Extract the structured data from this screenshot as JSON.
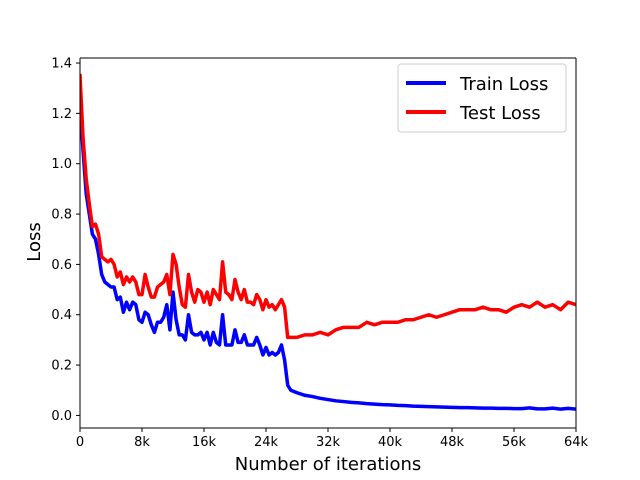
{
  "chart_data": {
    "type": "line",
    "xlabel": "Number of iterations",
    "ylabel": "Loss",
    "xlim": [
      0,
      64000
    ],
    "ylim": [
      -0.05,
      1.42
    ],
    "x_ticks": [
      0,
      8000,
      16000,
      24000,
      32000,
      40000,
      48000,
      56000,
      64000
    ],
    "x_tick_labels": [
      "0",
      "8k",
      "16k",
      "24k",
      "32k",
      "40k",
      "48k",
      "56k",
      "64k"
    ],
    "y_ticks": [
      0.0,
      0.2,
      0.4,
      0.6,
      0.8,
      1.0,
      1.2,
      1.4
    ],
    "y_tick_labels": [
      "0.0",
      "0.2",
      "0.4",
      "0.6",
      "0.8",
      "1.0",
      "1.2",
      "1.4"
    ],
    "grid": false,
    "legend_position": "top-right",
    "series": [
      {
        "name": "Train Loss",
        "color": "#0000ff",
        "points": [
          [
            0,
            1.24
          ],
          [
            400,
            1.05
          ],
          [
            800,
            0.88
          ],
          [
            1200,
            0.8
          ],
          [
            1600,
            0.72
          ],
          [
            2000,
            0.7
          ],
          [
            2400,
            0.64
          ],
          [
            2800,
            0.56
          ],
          [
            3200,
            0.53
          ],
          [
            3600,
            0.52
          ],
          [
            4000,
            0.51
          ],
          [
            4400,
            0.51
          ],
          [
            4800,
            0.46
          ],
          [
            5200,
            0.47
          ],
          [
            5600,
            0.41
          ],
          [
            6000,
            0.45
          ],
          [
            6400,
            0.42
          ],
          [
            6800,
            0.45
          ],
          [
            7200,
            0.44
          ],
          [
            7600,
            0.38
          ],
          [
            8000,
            0.37
          ],
          [
            8400,
            0.41
          ],
          [
            8800,
            0.4
          ],
          [
            9200,
            0.36
          ],
          [
            9600,
            0.33
          ],
          [
            10000,
            0.37
          ],
          [
            10400,
            0.37
          ],
          [
            10800,
            0.39
          ],
          [
            11200,
            0.44
          ],
          [
            11600,
            0.34
          ],
          [
            12000,
            0.49
          ],
          [
            12400,
            0.38
          ],
          [
            12800,
            0.32
          ],
          [
            13200,
            0.32
          ],
          [
            13600,
            0.3
          ],
          [
            14000,
            0.4
          ],
          [
            14400,
            0.33
          ],
          [
            14800,
            0.32
          ],
          [
            15200,
            0.32
          ],
          [
            15600,
            0.33
          ],
          [
            16000,
            0.3
          ],
          [
            16400,
            0.33
          ],
          [
            16800,
            0.28
          ],
          [
            17200,
            0.33
          ],
          [
            17600,
            0.29
          ],
          [
            18000,
            0.28
          ],
          [
            18400,
            0.4
          ],
          [
            18800,
            0.28
          ],
          [
            19200,
            0.28
          ],
          [
            19600,
            0.28
          ],
          [
            20000,
            0.34
          ],
          [
            20400,
            0.29
          ],
          [
            20800,
            0.29
          ],
          [
            21200,
            0.32
          ],
          [
            21600,
            0.28
          ],
          [
            22000,
            0.28
          ],
          [
            22400,
            0.28
          ],
          [
            22800,
            0.31
          ],
          [
            23200,
            0.28
          ],
          [
            23600,
            0.24
          ],
          [
            24000,
            0.27
          ],
          [
            24400,
            0.24
          ],
          [
            24800,
            0.25
          ],
          [
            25200,
            0.24
          ],
          [
            25600,
            0.25
          ],
          [
            26000,
            0.28
          ],
          [
            26400,
            0.22
          ],
          [
            26800,
            0.12
          ],
          [
            27200,
            0.1
          ],
          [
            28000,
            0.09
          ],
          [
            29000,
            0.08
          ],
          [
            30000,
            0.075
          ],
          [
            31000,
            0.068
          ],
          [
            32000,
            0.063
          ],
          [
            33000,
            0.058
          ],
          [
            34000,
            0.055
          ],
          [
            35000,
            0.052
          ],
          [
            36000,
            0.05
          ],
          [
            37000,
            0.047
          ],
          [
            38000,
            0.045
          ],
          [
            39000,
            0.043
          ],
          [
            40000,
            0.042
          ],
          [
            41000,
            0.04
          ],
          [
            42000,
            0.039
          ],
          [
            43000,
            0.037
          ],
          [
            44000,
            0.036
          ],
          [
            45000,
            0.035
          ],
          [
            46000,
            0.034
          ],
          [
            47000,
            0.033
          ],
          [
            48000,
            0.032
          ],
          [
            49000,
            0.031
          ],
          [
            50000,
            0.031
          ],
          [
            51000,
            0.03
          ],
          [
            52000,
            0.029
          ],
          [
            53000,
            0.029
          ],
          [
            54000,
            0.028
          ],
          [
            55000,
            0.028
          ],
          [
            56000,
            0.027
          ],
          [
            57000,
            0.027
          ],
          [
            58000,
            0.03
          ],
          [
            59000,
            0.026
          ],
          [
            60000,
            0.026
          ],
          [
            61000,
            0.029
          ],
          [
            62000,
            0.025
          ],
          [
            63000,
            0.028
          ],
          [
            64000,
            0.025
          ]
        ]
      },
      {
        "name": "Test Loss",
        "color": "#ff0000",
        "points": [
          [
            0,
            1.35
          ],
          [
            400,
            1.1
          ],
          [
            800,
            0.94
          ],
          [
            1200,
            0.84
          ],
          [
            1600,
            0.75
          ],
          [
            2000,
            0.76
          ],
          [
            2400,
            0.72
          ],
          [
            2800,
            0.63
          ],
          [
            3200,
            0.62
          ],
          [
            3600,
            0.61
          ],
          [
            4000,
            0.62
          ],
          [
            4400,
            0.6
          ],
          [
            4800,
            0.55
          ],
          [
            5200,
            0.57
          ],
          [
            5600,
            0.52
          ],
          [
            6000,
            0.55
          ],
          [
            6400,
            0.53
          ],
          [
            6800,
            0.55
          ],
          [
            7200,
            0.53
          ],
          [
            7600,
            0.48
          ],
          [
            8000,
            0.48
          ],
          [
            8400,
            0.56
          ],
          [
            8800,
            0.51
          ],
          [
            9200,
            0.47
          ],
          [
            9600,
            0.47
          ],
          [
            10000,
            0.51
          ],
          [
            10400,
            0.52
          ],
          [
            10800,
            0.53
          ],
          [
            11200,
            0.56
          ],
          [
            11600,
            0.48
          ],
          [
            12000,
            0.64
          ],
          [
            12400,
            0.6
          ],
          [
            12800,
            0.51
          ],
          [
            13200,
            0.44
          ],
          [
            13600,
            0.43
          ],
          [
            14000,
            0.56
          ],
          [
            14400,
            0.49
          ],
          [
            14800,
            0.45
          ],
          [
            15200,
            0.5
          ],
          [
            15600,
            0.49
          ],
          [
            16000,
            0.45
          ],
          [
            16400,
            0.49
          ],
          [
            16800,
            0.44
          ],
          [
            17200,
            0.5
          ],
          [
            17600,
            0.48
          ],
          [
            18000,
            0.46
          ],
          [
            18400,
            0.61
          ],
          [
            18800,
            0.49
          ],
          [
            19200,
            0.48
          ],
          [
            19600,
            0.46
          ],
          [
            20000,
            0.54
          ],
          [
            20400,
            0.49
          ],
          [
            20800,
            0.46
          ],
          [
            21200,
            0.5
          ],
          [
            21600,
            0.45
          ],
          [
            22000,
            0.45
          ],
          [
            22400,
            0.44
          ],
          [
            22800,
            0.48
          ],
          [
            23200,
            0.46
          ],
          [
            23600,
            0.42
          ],
          [
            24000,
            0.46
          ],
          [
            24400,
            0.43
          ],
          [
            24800,
            0.44
          ],
          [
            25200,
            0.42
          ],
          [
            25600,
            0.44
          ],
          [
            26000,
            0.46
          ],
          [
            26400,
            0.43
          ],
          [
            26800,
            0.31
          ],
          [
            27200,
            0.31
          ],
          [
            28000,
            0.31
          ],
          [
            29000,
            0.32
          ],
          [
            30000,
            0.32
          ],
          [
            31000,
            0.33
          ],
          [
            32000,
            0.32
          ],
          [
            33000,
            0.34
          ],
          [
            34000,
            0.35
          ],
          [
            35000,
            0.35
          ],
          [
            36000,
            0.35
          ],
          [
            37000,
            0.37
          ],
          [
            38000,
            0.36
          ],
          [
            39000,
            0.37
          ],
          [
            40000,
            0.37
          ],
          [
            41000,
            0.37
          ],
          [
            42000,
            0.38
          ],
          [
            43000,
            0.38
          ],
          [
            44000,
            0.39
          ],
          [
            45000,
            0.4
          ],
          [
            46000,
            0.39
          ],
          [
            47000,
            0.4
          ],
          [
            48000,
            0.41
          ],
          [
            49000,
            0.42
          ],
          [
            50000,
            0.42
          ],
          [
            51000,
            0.42
          ],
          [
            52000,
            0.43
          ],
          [
            53000,
            0.42
          ],
          [
            54000,
            0.42
          ],
          [
            55000,
            0.41
          ],
          [
            56000,
            0.43
          ],
          [
            57000,
            0.44
          ],
          [
            58000,
            0.43
          ],
          [
            59000,
            0.45
          ],
          [
            60000,
            0.43
          ],
          [
            61000,
            0.44
          ],
          [
            62000,
            0.42
          ],
          [
            63000,
            0.45
          ],
          [
            64000,
            0.44
          ]
        ]
      }
    ]
  }
}
